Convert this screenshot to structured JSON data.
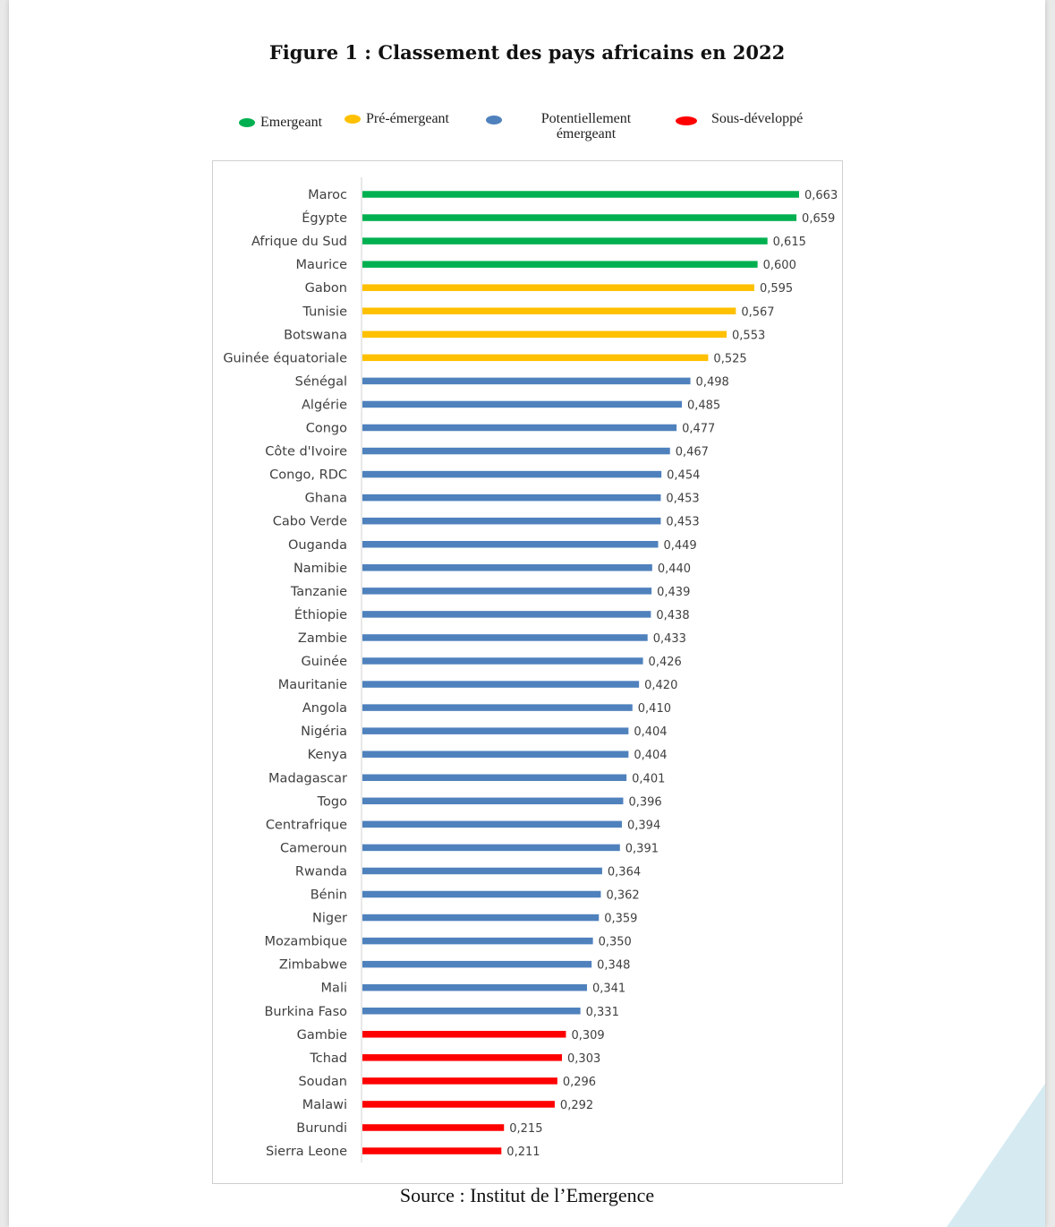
{
  "figure": {
    "title": "Figure 1 : Classement des pays africains en 2022",
    "source": "Source : Institut de l’Emergence"
  },
  "legend": [
    {
      "label": "Emergeant",
      "color": "#00b050"
    },
    {
      "label": "Pré-émergeant",
      "color": "#ffc000"
    },
    {
      "label": "Potentiellement émergeant",
      "color": "#4f81bd"
    },
    {
      "label": "Sous-développé",
      "color": "#ff0000"
    }
  ],
  "chart_data": {
    "type": "bar",
    "orientation": "horizontal",
    "title": "Figure 1 : Classement des pays africains en 2022",
    "categories": [
      "Maroc",
      "Égypte",
      "Afrique du Sud",
      "Maurice",
      "Gabon",
      "Tunisie",
      "Botswana",
      "Guinée équatoriale",
      "Sénégal",
      "Algérie",
      "Congo",
      "Côte d'Ivoire",
      "Congo, RDC",
      "Ghana",
      "Cabo Verde",
      "Ouganda",
      "Namibie",
      "Tanzanie",
      "Éthiopie",
      "Zambie",
      "Guinée",
      "Mauritanie",
      "Angola",
      "Nigéria",
      "Kenya",
      "Madagascar",
      "Togo",
      "Centrafrique",
      "Cameroun",
      "Rwanda",
      "Bénin",
      "Niger",
      "Mozambique",
      "Zimbabwe",
      "Mali",
      "Burkina Faso",
      "Gambie",
      "Tchad",
      "Soudan",
      "Malawi",
      "Burundi",
      "Sierra Leone"
    ],
    "values": [
      0.663,
      0.659,
      0.615,
      0.6,
      0.595,
      0.567,
      0.553,
      0.525,
      0.498,
      0.485,
      0.477,
      0.467,
      0.454,
      0.453,
      0.453,
      0.449,
      0.44,
      0.439,
      0.438,
      0.433,
      0.426,
      0.42,
      0.41,
      0.404,
      0.404,
      0.401,
      0.396,
      0.394,
      0.391,
      0.364,
      0.362,
      0.359,
      0.35,
      0.348,
      0.341,
      0.331,
      0.309,
      0.303,
      0.296,
      0.292,
      0.215,
      0.211
    ],
    "value_labels": [
      "0,663",
      "0,659",
      "0,615",
      "0,600",
      "0,595",
      "0,567",
      "0,553",
      "0,525",
      "0,498",
      "0,485",
      "0,477",
      "0,467",
      "0,454",
      "0,453",
      "0,453",
      "0,449",
      "0,440",
      "0,439",
      "0,438",
      "0,433",
      "0,426",
      "0,420",
      "0,410",
      "0,404",
      "0,404",
      "0,401",
      "0,396",
      "0,394",
      "0,391",
      "0,364",
      "0,362",
      "0,359",
      "0,350",
      "0,348",
      "0,341",
      "0,331",
      "0,309",
      "0,303",
      "0,296",
      "0,292",
      "0,215",
      "0,211"
    ],
    "groups": [
      "Emergeant",
      "Emergeant",
      "Emergeant",
      "Emergeant",
      "Pré-émergeant",
      "Pré-émergeant",
      "Pré-émergeant",
      "Pré-émergeant",
      "Potentiellement émergeant",
      "Potentiellement émergeant",
      "Potentiellement émergeant",
      "Potentiellement émergeant",
      "Potentiellement émergeant",
      "Potentiellement émergeant",
      "Potentiellement émergeant",
      "Potentiellement émergeant",
      "Potentiellement émergeant",
      "Potentiellement émergeant",
      "Potentiellement émergeant",
      "Potentiellement émergeant",
      "Potentiellement émergeant",
      "Potentiellement émergeant",
      "Potentiellement émergeant",
      "Potentiellement émergeant",
      "Potentiellement émergeant",
      "Potentiellement émergeant",
      "Potentiellement émergeant",
      "Potentiellement émergeant",
      "Potentiellement émergeant",
      "Potentiellement émergeant",
      "Potentiellement émergeant",
      "Potentiellement émergeant",
      "Potentiellement émergeant",
      "Potentiellement émergeant",
      "Potentiellement émergeant",
      "Potentiellement émergeant",
      "Sous-développé",
      "Sous-développé",
      "Sous-développé",
      "Sous-développé",
      "Sous-développé",
      "Sous-développé"
    ],
    "xlim": [
      0,
      0.663
    ],
    "grid": false,
    "legend_position": "top"
  }
}
